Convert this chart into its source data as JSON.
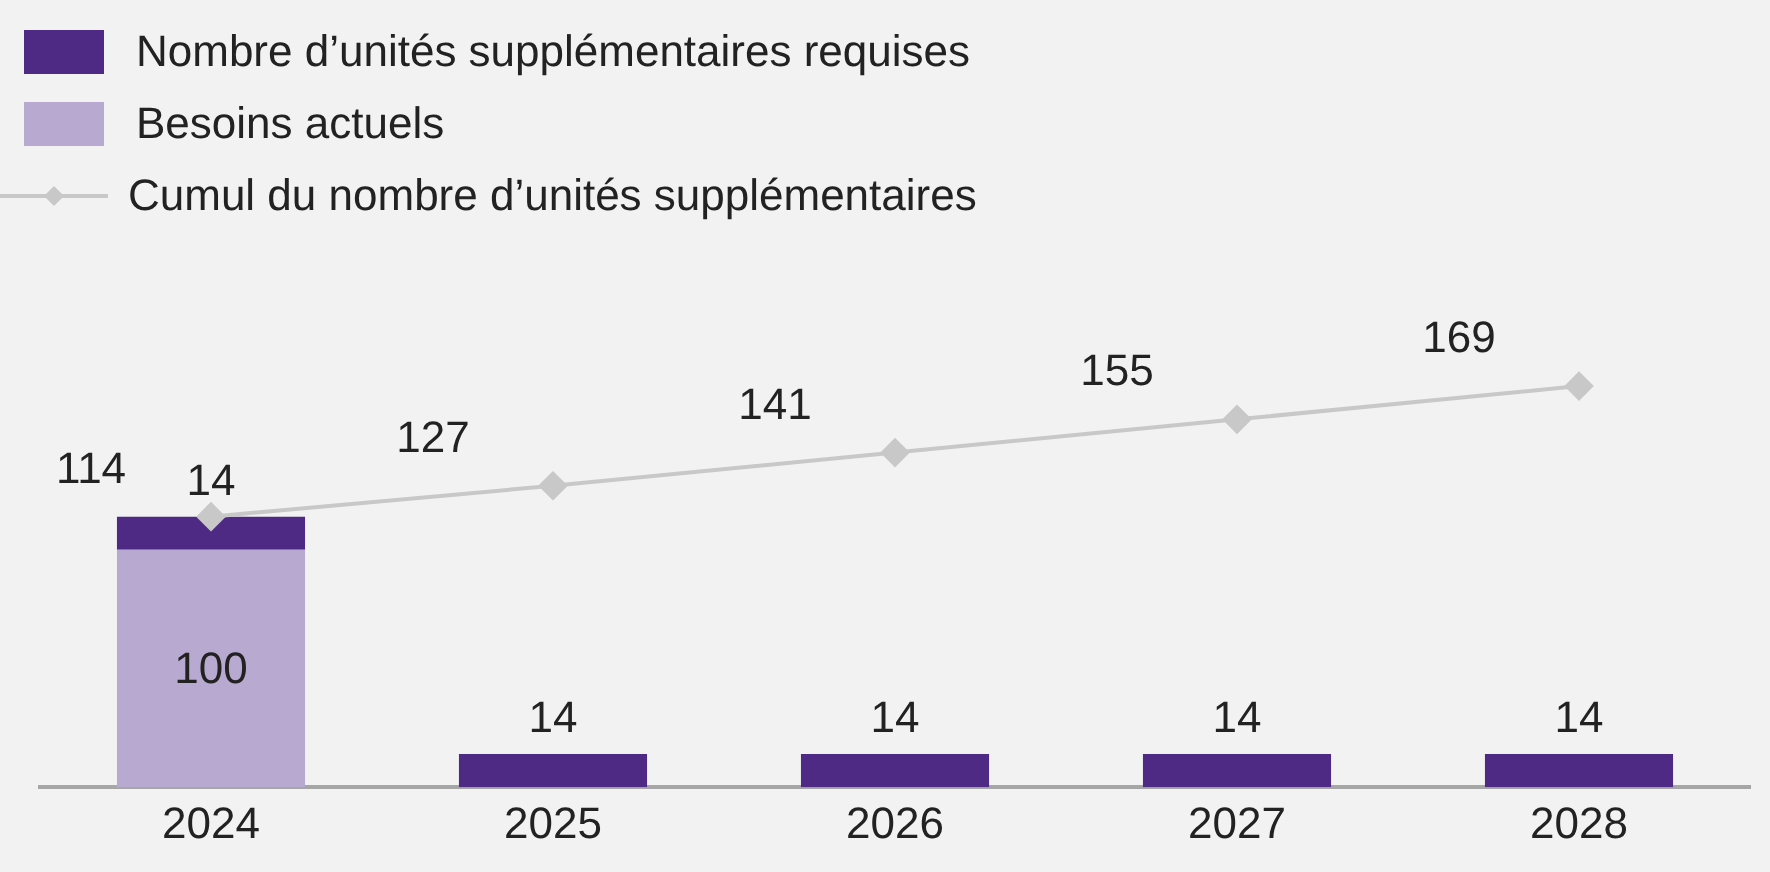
{
  "chart_data": {
    "type": "bar",
    "stacked": true,
    "categories": [
      "2024",
      "2025",
      "2026",
      "2027",
      "2028"
    ],
    "series": [
      {
        "name": "Besoins actuels",
        "color": "#b8a9d0",
        "values": [
          100,
          null,
          null,
          null,
          null
        ]
      },
      {
        "name": "Nombre d’unités supplémentaires requises",
        "color": "#4e2a84",
        "values": [
          14,
          14,
          14,
          14,
          14
        ]
      },
      {
        "name": "Cumul du nombre d’unités supplémentaires",
        "type": "line",
        "color": "#c8c8c8",
        "values": [
          114,
          127,
          141,
          155,
          169
        ]
      }
    ],
    "legend": "top left",
    "marker": "diamond",
    "data_labels": true,
    "grid": false
  }
}
